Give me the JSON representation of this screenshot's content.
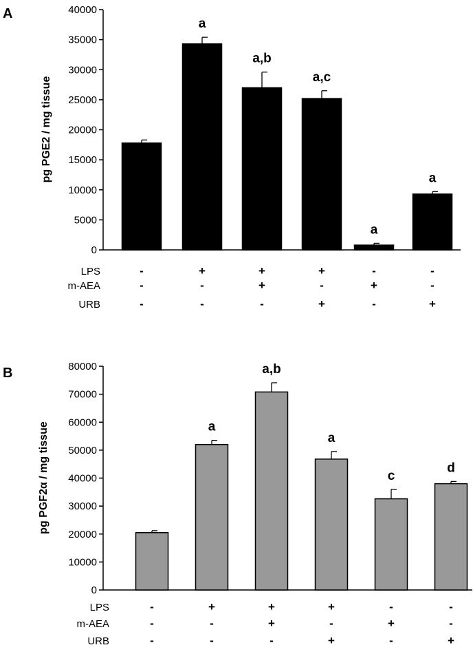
{
  "chart_data": [
    {
      "type": "bar",
      "panel_label": "A",
      "ylabel": "pg PGE2 / mg tissue",
      "ylim": [
        0,
        40000
      ],
      "yticks": [
        "0",
        "5000",
        "10000",
        "15000",
        "20000",
        "25000",
        "30000",
        "35000",
        "40000"
      ],
      "categories": [
        "1",
        "2",
        "3",
        "4",
        "5",
        "6"
      ],
      "values": [
        17800,
        34300,
        27000,
        25200,
        800,
        9300
      ],
      "errors": [
        500,
        1100,
        2600,
        1300,
        300,
        400
      ],
      "significance": [
        "",
        "a",
        "a,b",
        "a,c",
        "a",
        "a"
      ],
      "bar_color": "#000000",
      "grid": false,
      "treatments": [
        {
          "name": "LPS",
          "marks": [
            "-",
            "+",
            "+",
            "+",
            "-",
            "-"
          ]
        },
        {
          "name": "m-AEA",
          "marks": [
            "-",
            "-",
            "+",
            "-",
            "+",
            "-"
          ]
        },
        {
          "name": "URB",
          "marks": [
            "-",
            "-",
            "-",
            "+",
            "-",
            "+"
          ]
        }
      ]
    },
    {
      "type": "bar",
      "panel_label": "B",
      "ylabel": "pg PGF2α / mg tissue",
      "ylim": [
        0,
        80000
      ],
      "yticks": [
        "0",
        "10000",
        "20000",
        "30000",
        "40000",
        "50000",
        "60000",
        "70000",
        "80000"
      ],
      "categories": [
        "1",
        "2",
        "3",
        "4",
        "5",
        "6"
      ],
      "values": [
        20500,
        52000,
        70800,
        46800,
        32600,
        38000
      ],
      "errors": [
        700,
        1500,
        3300,
        2700,
        3400,
        800
      ],
      "significance": [
        "",
        "a",
        "a,b",
        "a",
        "c",
        "d"
      ],
      "bar_color": "#999999",
      "grid": false,
      "treatments": [
        {
          "name": "LPS",
          "marks": [
            "-",
            "+",
            "+",
            "+",
            "-",
            "-"
          ]
        },
        {
          "name": "m-AEA",
          "marks": [
            "-",
            "-",
            "+",
            "-",
            "+",
            "-"
          ]
        },
        {
          "name": "URB",
          "marks": [
            "-",
            "-",
            "-",
            "+",
            "-",
            "+"
          ]
        }
      ]
    }
  ]
}
